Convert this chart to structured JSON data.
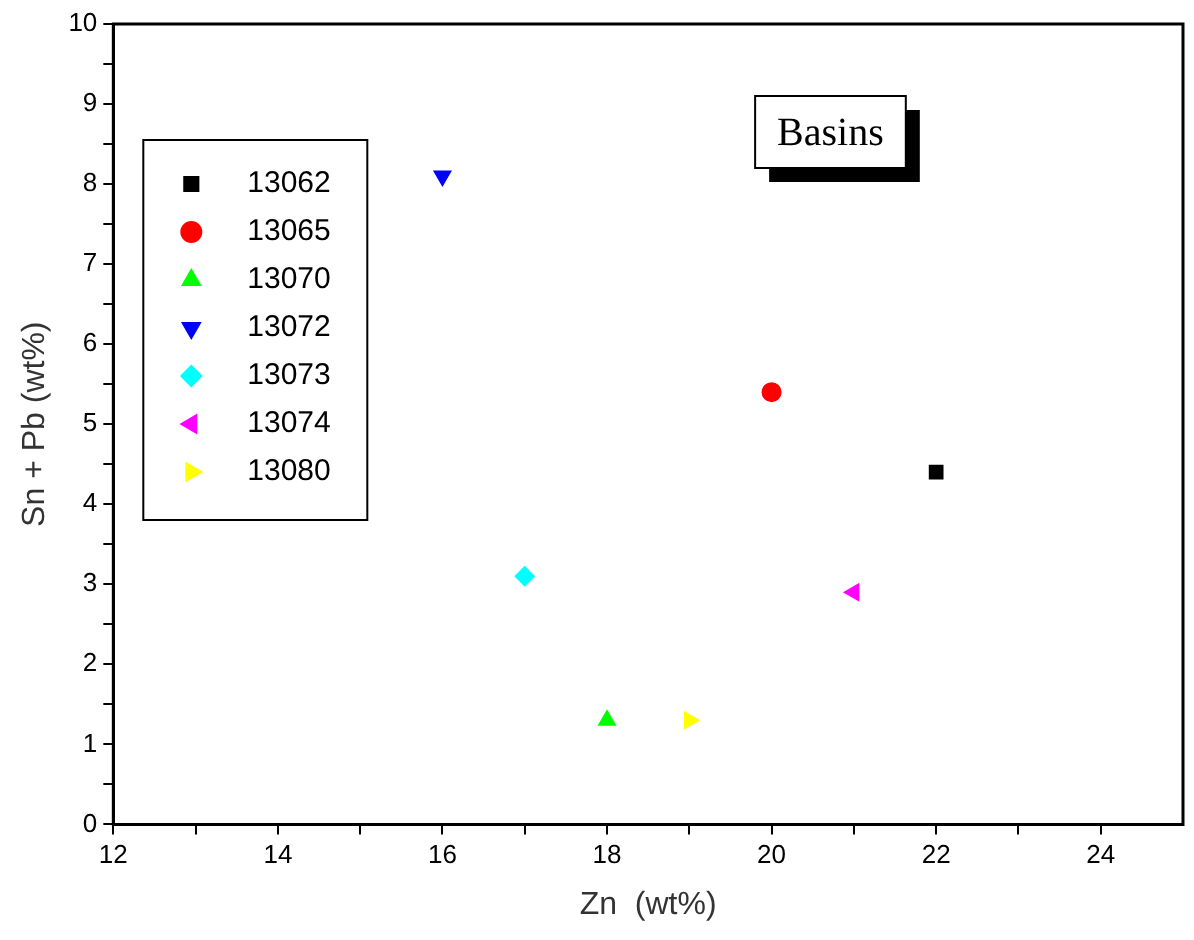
{
  "chart_data": {
    "type": "scatter",
    "xlabel": "Zn  (wt%)",
    "ylabel": "Sn + Pb (wt%)",
    "annotations": [
      "Basins"
    ],
    "legend": "top left",
    "xlim": [
      12,
      25
    ],
    "xticks": [
      12,
      {
        "value": 13,
        "label": null
      },
      14,
      {
        "value": 15,
        "label": null
      },
      16,
      {
        "value": 17,
        "label": null
      },
      18,
      {
        "value": 19,
        "label": null
      },
      20,
      {
        "value": 21,
        "label": null
      },
      22,
      {
        "value": 23,
        "label": null
      },
      24
    ],
    "ylim": [
      0,
      10
    ],
    "yticks": [
      0,
      {
        "value": 0.5,
        "label": null
      },
      1,
      {
        "value": 1.5,
        "label": null
      },
      2,
      {
        "value": 2.5,
        "label": null
      },
      3,
      {
        "value": 3.5,
        "label": null
      },
      4,
      {
        "value": 4.5,
        "label": null
      },
      5,
      {
        "value": 5.5,
        "label": null
      },
      6,
      {
        "value": 6.5,
        "label": null
      },
      7,
      {
        "value": 7.5,
        "label": null
      },
      8,
      {
        "value": 8.5,
        "label": null
      },
      9,
      {
        "value": 9.5,
        "label": null
      },
      10
    ],
    "series": [
      {
        "name": "13062",
        "color": "#000000",
        "marker": "square",
        "x": [
          22
        ],
        "values": [
          4.4
        ]
      },
      {
        "name": "13065",
        "color": "#ff0000",
        "marker": "circle",
        "x": [
          20
        ],
        "values": [
          5.4
        ]
      },
      {
        "name": "13070",
        "color": "#00ff00",
        "marker": "triangle",
        "x": [
          18
        ],
        "values": [
          1.3
        ]
      },
      {
        "name": "13072",
        "color": "#0000ff",
        "marker": "triangle-down",
        "x": [
          16
        ],
        "values": [
          8.1
        ]
      },
      {
        "name": "13073",
        "color": "#00ffff",
        "marker": "diamond",
        "x": [
          17
        ],
        "values": [
          3.1
        ]
      },
      {
        "name": "13074",
        "color": "#ff00ff",
        "marker": "triangle-left",
        "x": [
          21
        ],
        "values": [
          2.9
        ]
      },
      {
        "name": "13080",
        "color": "#ffff00",
        "marker": "triangle-right",
        "x": [
          19
        ],
        "values": [
          1.3
        ]
      }
    ]
  }
}
